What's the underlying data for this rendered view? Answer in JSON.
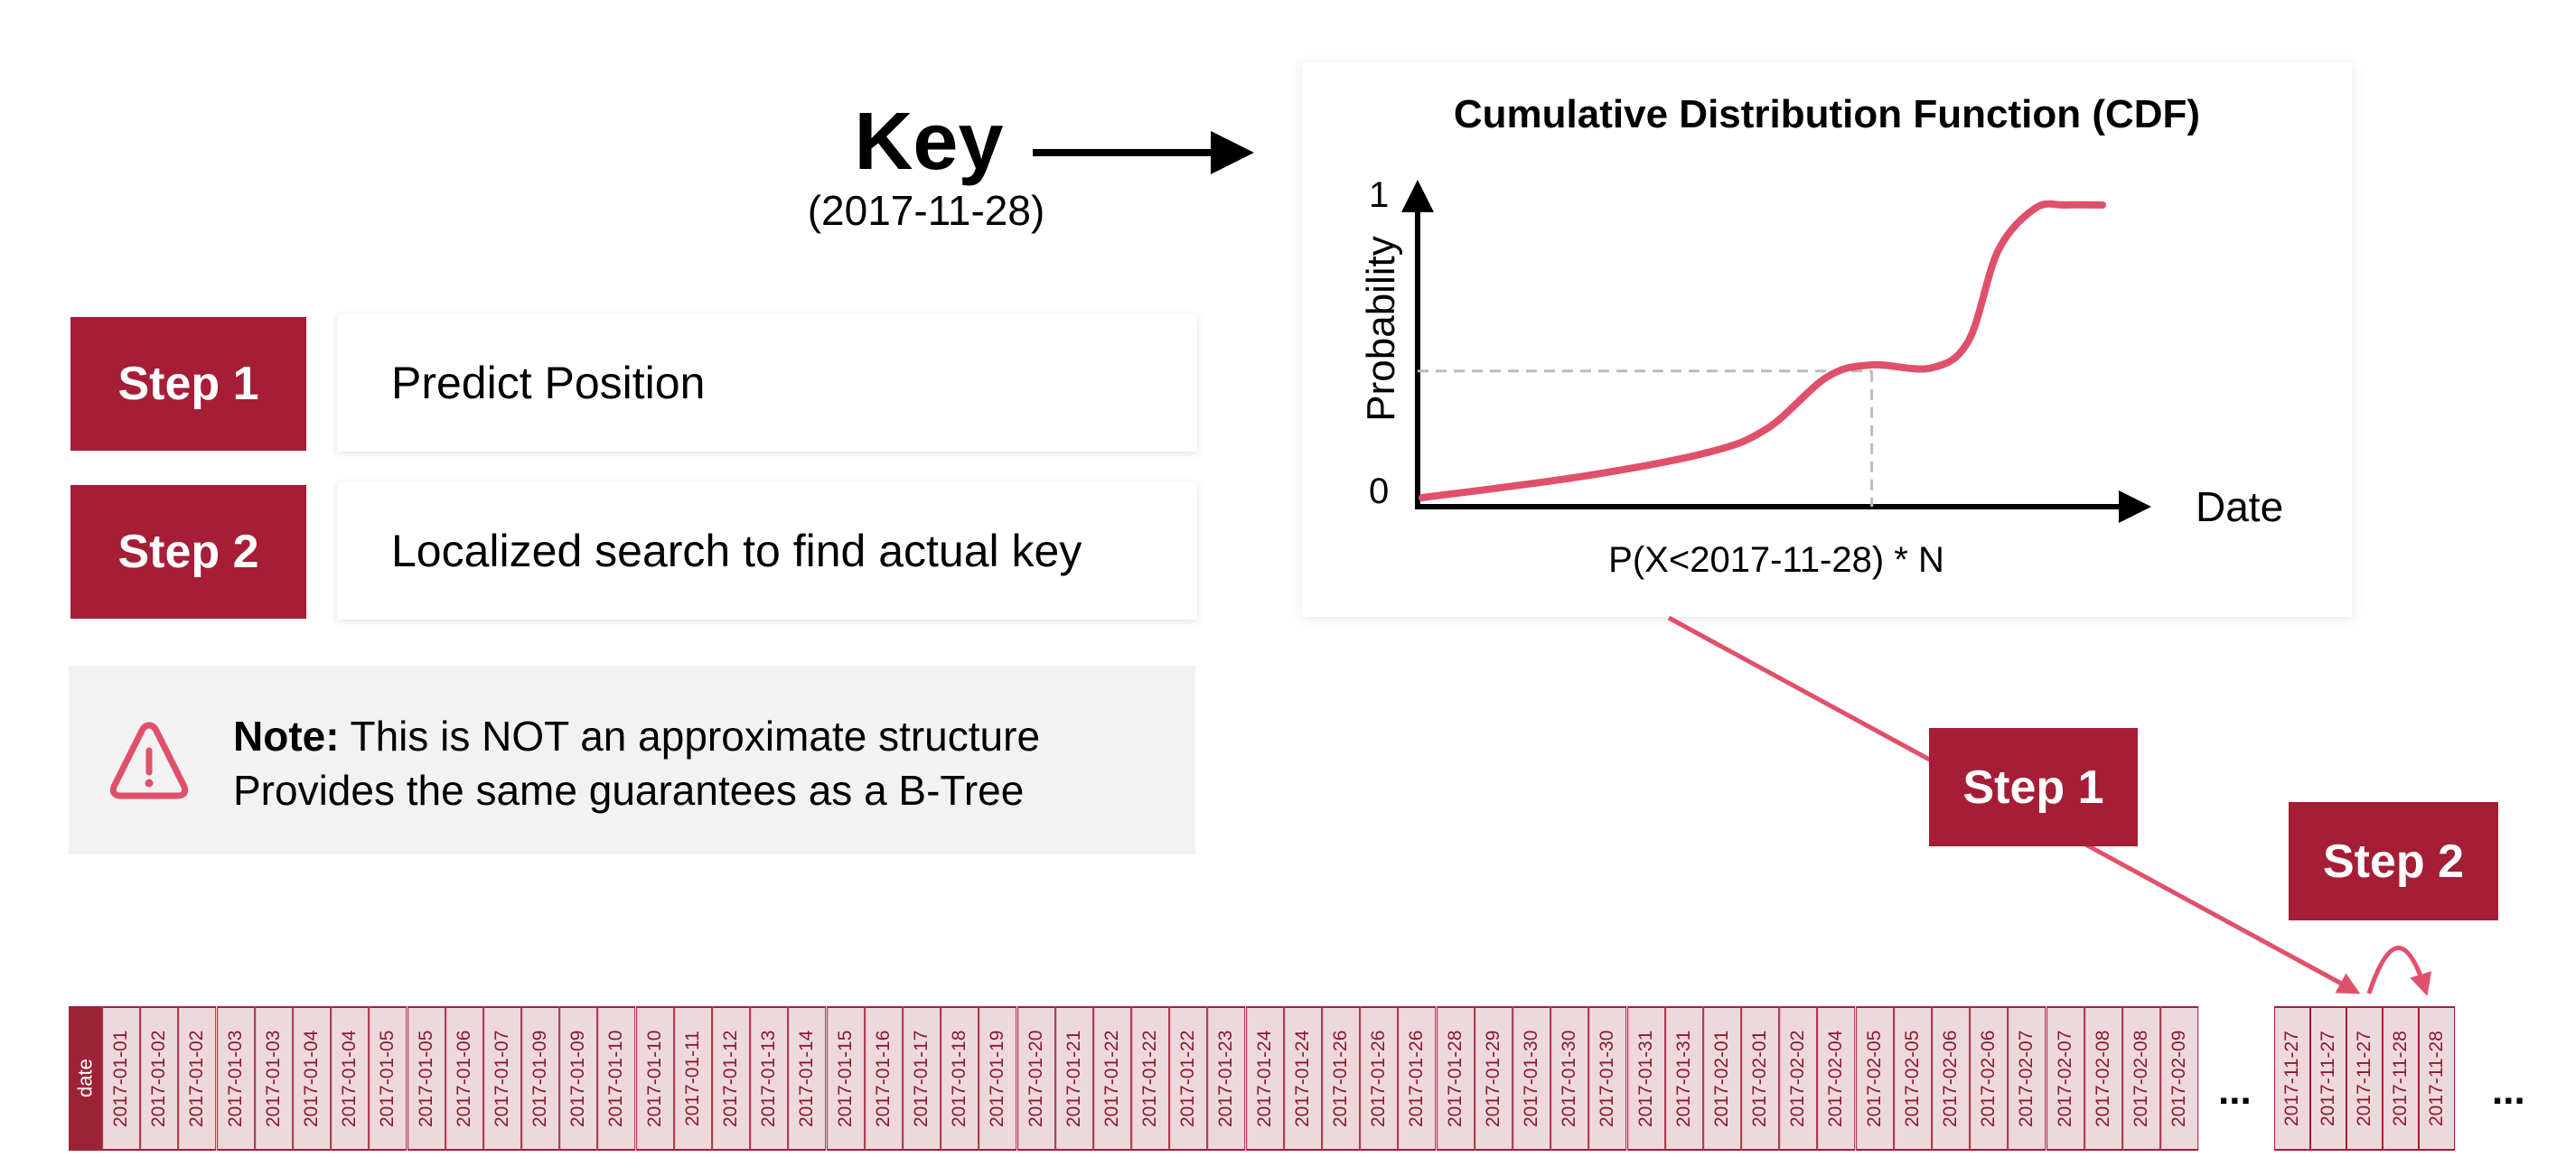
{
  "key": {
    "title": "Key",
    "value": "(2017-11-28)"
  },
  "steps": [
    {
      "tag": "Step 1",
      "label": "Predict Position"
    },
    {
      "tag": "Step 2",
      "label": "Localized search to find actual key"
    }
  ],
  "note": {
    "icon": "warning-triangle-icon",
    "bold": "Note:",
    "line1": " This is NOT an approximate structure",
    "line2": "Provides the same guarantees as a B-Tree"
  },
  "chart_data": {
    "type": "line",
    "title": "Cumulative Distribution Function (CDF)",
    "xlabel": "Date",
    "ylabel": "Probability",
    "yticks": [
      "0",
      "1"
    ],
    "ylim": [
      0,
      1
    ],
    "caption": "P(X<2017-11-28) * N",
    "series": [
      {
        "x": [
          0.006,
          0.22,
          0.39,
          0.47,
          0.55,
          0.61,
          0.69,
          0.74,
          0.78,
          0.83,
          0.87,
          0.92
        ],
        "y": [
          0.03,
          0.1,
          0.18,
          0.26,
          0.43,
          0.47,
          0.46,
          0.55,
          0.85,
          0.99,
          1.0,
          1.0
        ]
      }
    ],
    "marker": {
      "x": 0.61,
      "y": 0.45
    },
    "grid": false,
    "line_color": "#E0506A"
  },
  "flow": {
    "step1": "Step 1",
    "step2": "Step 2"
  },
  "strip": {
    "header": "date",
    "cells": [
      "2017-01-01",
      "2017-01-02",
      "2017-01-02",
      "2017-01-03",
      "2017-01-03",
      "2017-01-04",
      "2017-01-04",
      "2017-01-05",
      "2017-01-05",
      "2017-01-06",
      "2017-01-07",
      "2017-01-09",
      "2017-01-09",
      "2017-01-10",
      "2017-01-10",
      "2017-01-11",
      "2017-01-12",
      "2017-01-13",
      "2017-01-14",
      "2017-01-15",
      "2017-01-16",
      "2017-01-17",
      "2017-01-18",
      "2017-01-19",
      "2017-01-20",
      "2017-01-21",
      "2017-01-22",
      "2017-01-22",
      "2017-01-22",
      "2017-01-23",
      "2017-01-24",
      "2017-01-24",
      "2017-01-26",
      "2017-01-26",
      "2017-01-26",
      "2017-01-28",
      "2017-01-29",
      "2017-01-30",
      "2017-01-30",
      "2017-01-30",
      "2017-01-31",
      "2017-01-31",
      "2017-02-01",
      "2017-02-01",
      "2017-02-02",
      "2017-02-04",
      "2017-02-05",
      "2017-02-05",
      "2017-02-06",
      "2017-02-06",
      "2017-02-07",
      "2017-02-07",
      "2017-02-08",
      "2017-02-08",
      "2017-02-09"
    ],
    "cells2": [
      "2017-11-27",
      "2017-11-27",
      "2017-11-27",
      "2017-11-28",
      "2017-11-28"
    ],
    "ellipsis": "..."
  },
  "colors": {
    "accent": "#A51E36",
    "curve": "#E0506A",
    "cell_bg": "#EDD9DC",
    "note_bg": "#F2F2F2"
  }
}
